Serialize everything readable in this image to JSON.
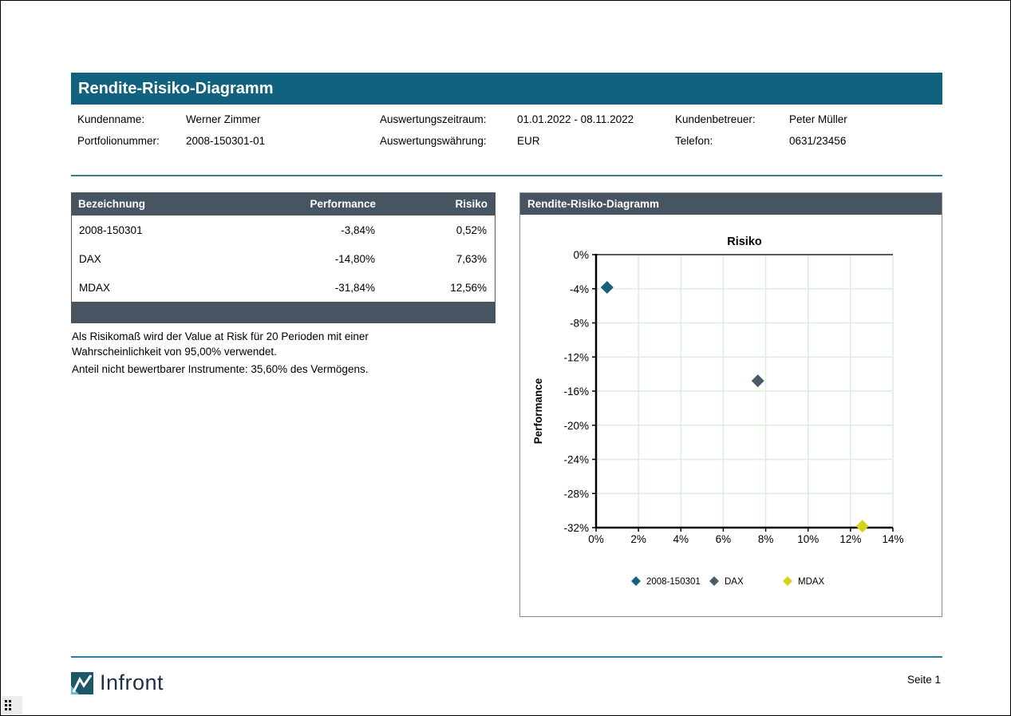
{
  "page": {
    "title": "Rendite-Risiko-Diagramm",
    "page_label": "Seite 1",
    "brand": "Infront"
  },
  "info": {
    "fields": [
      {
        "label": "Kundenname:",
        "value": "Werner Zimmer"
      },
      {
        "label": "Portfolionummer:",
        "value": "2008-150301-01"
      },
      {
        "label": "Auswertungszeitraum:",
        "value": "01.01.2022 - 08.11.2022"
      },
      {
        "label": "Auswertungswährung:",
        "value": "EUR"
      },
      {
        "label": "Kundenbetreuer:",
        "value": "Peter Müller"
      },
      {
        "label": "Telefon:",
        "value": "0631/23456"
      }
    ]
  },
  "table": {
    "headers": [
      "Bezeichnung",
      "Performance",
      "Risiko"
    ],
    "rows": [
      {
        "name": "2008-150301",
        "performance": "-3,84%",
        "risiko": "0,52%"
      },
      {
        "name": "DAX",
        "performance": "-14,80%",
        "risiko": "7,63%"
      },
      {
        "name": "MDAX",
        "performance": "-31,84%",
        "risiko": "12,56%"
      }
    ]
  },
  "notes": {
    "lines": [
      "Als Risikomaß wird der Value at Risk für 20 Perioden mit einer",
      "Wahrscheinlichkeit von 95,00% verwendet.",
      "Anteil nicht bewertbarer Instrumente: 35,60% des Vermögens."
    ]
  },
  "chart_panel": {
    "title": "Rendite-Risiko-Diagramm"
  },
  "chart_data": {
    "type": "scatter",
    "title": "Risiko",
    "xlabel": "Risiko",
    "ylabel": "Performance",
    "xlim": [
      0,
      14
    ],
    "ylim": [
      -32,
      0
    ],
    "grid": true,
    "legend_position": "bottom",
    "x_ticks": [
      {
        "value": 0,
        "label": "0%"
      },
      {
        "value": 2,
        "label": "2%"
      },
      {
        "value": 4,
        "label": "4%"
      },
      {
        "value": 6,
        "label": "6%"
      },
      {
        "value": 8,
        "label": "8%"
      },
      {
        "value": 10,
        "label": "10%"
      },
      {
        "value": 12,
        "label": "12%"
      },
      {
        "value": 14,
        "label": "14%"
      }
    ],
    "y_ticks": [
      {
        "value": 0,
        "label": "0%"
      },
      {
        "value": -4,
        "label": "-4%"
      },
      {
        "value": -8,
        "label": "-8%"
      },
      {
        "value": -12,
        "label": "-12%"
      },
      {
        "value": -16,
        "label": "-16%"
      },
      {
        "value": -20,
        "label": "-20%"
      },
      {
        "value": -24,
        "label": "-24%"
      },
      {
        "value": -28,
        "label": "-28%"
      },
      {
        "value": -32,
        "label": "-32%"
      }
    ],
    "series": [
      {
        "name": "2008-150301",
        "marker": "diamond",
        "color": "#15607B",
        "points": [
          {
            "x": 0.52,
            "y": -3.84
          }
        ]
      },
      {
        "name": "DAX",
        "marker": "diamond",
        "color": "#4A5A68",
        "points": [
          {
            "x": 7.63,
            "y": -14.8
          }
        ]
      },
      {
        "name": "MDAX",
        "marker": "diamond",
        "color": "#D4D51B",
        "points": [
          {
            "x": 12.56,
            "y": -31.84
          }
        ]
      }
    ]
  },
  "colors": {
    "title_bar": "#10627E",
    "section_header": "#475563",
    "separator": "#3A7E95",
    "footer_line": "#2B7CA8",
    "grid_line": "#DCEEDC",
    "axis": "#000000",
    "top_axis": "#58595B"
  }
}
